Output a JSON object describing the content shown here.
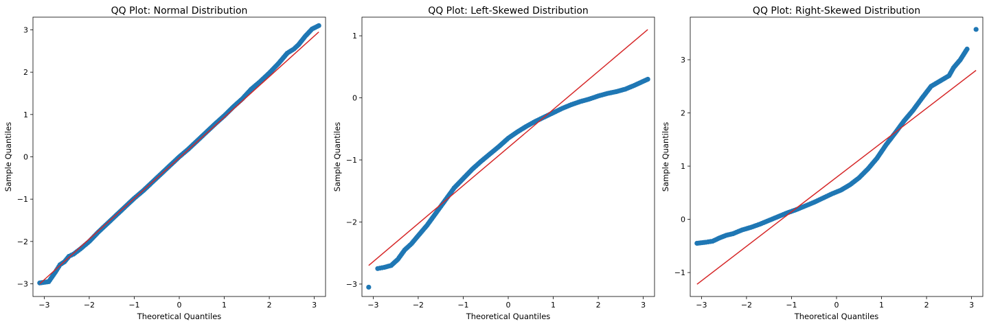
{
  "colors": {
    "point": "#1f77b4",
    "line": "#d62728",
    "axis": "#000000"
  },
  "axis_labels": {
    "x": "Theoretical Quantiles",
    "y": "Sample Quantiles"
  },
  "chart_data": [
    {
      "type": "scatter",
      "title": "QQ Plot: Normal Distribution",
      "xlabel": "Theoretical Quantiles",
      "ylabel": "Sample Quantiles",
      "xlim": [
        -3.25,
        3.25
      ],
      "ylim": [
        -3.3,
        3.3
      ],
      "xticks": [
        -3,
        -2,
        -1,
        0,
        1,
        2,
        3
      ],
      "yticks": [
        -3,
        -2,
        -1,
        0,
        1,
        2,
        3
      ],
      "reference_line": {
        "x": [
          -3.1,
          3.1
        ],
        "y": [
          -3.0,
          2.95
        ]
      },
      "series": [
        {
          "name": "sample",
          "x": [
            -3.1,
            -2.9,
            -2.75,
            -2.65,
            -2.55,
            -2.45,
            -2.35,
            -2.2,
            -2.0,
            -1.8,
            -1.6,
            -1.4,
            -1.2,
            -1.0,
            -0.8,
            -0.6,
            -0.4,
            -0.2,
            0.0,
            0.2,
            0.4,
            0.6,
            0.8,
            1.0,
            1.2,
            1.4,
            1.6,
            1.8,
            2.0,
            2.2,
            2.4,
            2.55,
            2.65,
            2.8,
            2.95,
            3.1
          ],
          "y": [
            -2.98,
            -2.95,
            -2.72,
            -2.55,
            -2.48,
            -2.35,
            -2.3,
            -2.18,
            -2.0,
            -1.78,
            -1.58,
            -1.38,
            -1.18,
            -0.98,
            -0.8,
            -0.6,
            -0.4,
            -0.2,
            0.0,
            0.18,
            0.38,
            0.58,
            0.78,
            0.97,
            1.18,
            1.37,
            1.6,
            1.78,
            1.98,
            2.2,
            2.45,
            2.55,
            2.65,
            2.85,
            3.02,
            3.1
          ]
        }
      ]
    },
    {
      "type": "scatter",
      "title": "QQ Plot: Left-Skewed Distribution",
      "xlabel": "Theoretical Quantiles",
      "ylabel": "Sample Quantiles",
      "xlim": [
        -3.25,
        3.25
      ],
      "ylim": [
        -3.2,
        1.3
      ],
      "xticks": [
        -3,
        -2,
        -1,
        0,
        1,
        2,
        3
      ],
      "yticks": [
        -3,
        -2,
        -1,
        0,
        1
      ],
      "reference_line": {
        "x": [
          -3.1,
          3.1
        ],
        "y": [
          -2.7,
          1.1
        ]
      },
      "series": [
        {
          "name": "sample",
          "x": [
            -3.1,
            -2.9,
            -2.75,
            -2.6,
            -2.45,
            -2.3,
            -2.15,
            -2.0,
            -1.8,
            -1.6,
            -1.4,
            -1.2,
            -1.0,
            -0.8,
            -0.6,
            -0.4,
            -0.2,
            0.0,
            0.2,
            0.4,
            0.6,
            0.8,
            1.0,
            1.2,
            1.4,
            1.6,
            1.8,
            2.0,
            2.2,
            2.4,
            2.6,
            2.8,
            2.95,
            3.1
          ],
          "y": [
            -3.05,
            -2.75,
            -2.73,
            -2.7,
            -2.6,
            -2.45,
            -2.35,
            -2.22,
            -2.05,
            -1.85,
            -1.65,
            -1.45,
            -1.3,
            -1.15,
            -1.02,
            -0.9,
            -0.78,
            -0.65,
            -0.55,
            -0.46,
            -0.38,
            -0.31,
            -0.24,
            -0.17,
            -0.11,
            -0.06,
            -0.02,
            0.03,
            0.07,
            0.1,
            0.14,
            0.2,
            0.25,
            0.3
          ]
        }
      ]
    },
    {
      "type": "scatter",
      "title": "QQ Plot: Right-Skewed Distribution",
      "xlabel": "Theoretical Quantiles",
      "ylabel": "Sample Quantiles",
      "xlim": [
        -3.25,
        3.25
      ],
      "ylim": [
        -1.45,
        3.8
      ],
      "xticks": [
        -3,
        -2,
        -1,
        0,
        1,
        2,
        3
      ],
      "yticks": [
        -1,
        0,
        1,
        2,
        3
      ],
      "reference_line": {
        "x": [
          -3.1,
          3.1
        ],
        "y": [
          -1.22,
          2.8
        ]
      },
      "series": [
        {
          "name": "sample",
          "x": [
            -3.1,
            -2.9,
            -2.75,
            -2.6,
            -2.45,
            -2.3,
            -2.1,
            -1.9,
            -1.7,
            -1.5,
            -1.3,
            -1.1,
            -0.9,
            -0.7,
            -0.5,
            -0.3,
            -0.1,
            0.1,
            0.3,
            0.5,
            0.7,
            0.9,
            1.1,
            1.3,
            1.5,
            1.7,
            1.9,
            2.1,
            2.3,
            2.5,
            2.6,
            2.75,
            2.9,
            3.1
          ],
          "y": [
            -0.45,
            -0.43,
            -0.41,
            -0.35,
            -0.3,
            -0.27,
            -0.2,
            -0.15,
            -0.09,
            -0.02,
            0.05,
            0.12,
            0.18,
            0.25,
            0.32,
            0.4,
            0.48,
            0.55,
            0.65,
            0.78,
            0.95,
            1.15,
            1.4,
            1.62,
            1.85,
            2.05,
            2.28,
            2.5,
            2.6,
            2.7,
            2.85,
            3.0,
            3.2,
            3.57
          ]
        }
      ]
    }
  ]
}
